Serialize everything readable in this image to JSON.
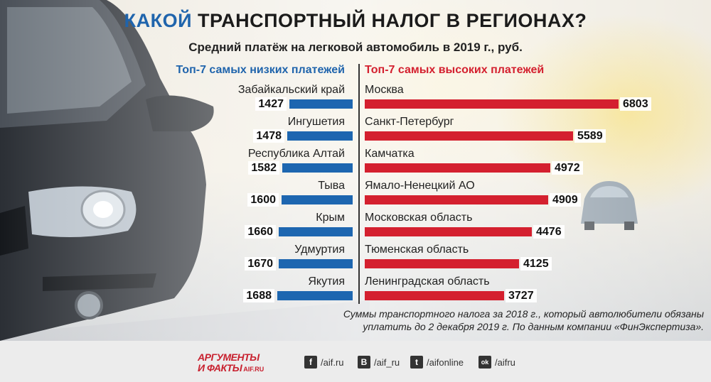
{
  "header": {
    "title_accent": "КАКОЙ",
    "title_rest": "ТРАНСПОРТНЫЙ НАЛОГ В РЕГИОНАХ?",
    "subtitle": "Средний платёж на легковой автомобиль в 2019 г., руб."
  },
  "chart_data": {
    "type": "bar",
    "orientation": "horizontal",
    "unit": "руб.",
    "series": [
      {
        "name": "Топ-7 самых низких платежей",
        "color": "#1d66b0",
        "categories": [
          "Забайкальский край",
          "Ингушетия",
          "Республика Алтай",
          "Тыва",
          "Крым",
          "Удмуртия",
          "Якутия"
        ],
        "values": [
          1427,
          1478,
          1582,
          1600,
          1660,
          1670,
          1688
        ]
      },
      {
        "name": "Топ-7 самых высоких платежей",
        "color": "#d4202f",
        "categories": [
          "Москва",
          "Санкт-Петербург",
          "Камчатка",
          "Ямало-Ненецкий АО",
          "Московская область",
          "Тюменская область",
          "Ленинградская область"
        ],
        "values": [
          6803,
          5589,
          4972,
          4909,
          4476,
          4125,
          3727
        ]
      }
    ]
  },
  "note": {
    "line1": "Суммы транспортного налога за 2018 г., который автолюбители обязаны",
    "line2": "уплатить до 2 декабря 2019 г. По данным компании «ФинЭкспертиза»."
  },
  "footer": {
    "logo_line1": "АРГУМЕНТЫ",
    "logo_line2": "И ФАКТЫ",
    "logo_site": "AIF.RU",
    "social": [
      {
        "icon": "facebook-icon",
        "glyph": "f",
        "label": "/aif.ru"
      },
      {
        "icon": "vk-icon",
        "glyph": "В",
        "label": "/aif_ru"
      },
      {
        "icon": "twitter-icon",
        "glyph": "t",
        "label": "/aifonline"
      },
      {
        "icon": "odnoklassniki-icon",
        "glyph": "ok",
        "label": "/aifru"
      }
    ]
  }
}
